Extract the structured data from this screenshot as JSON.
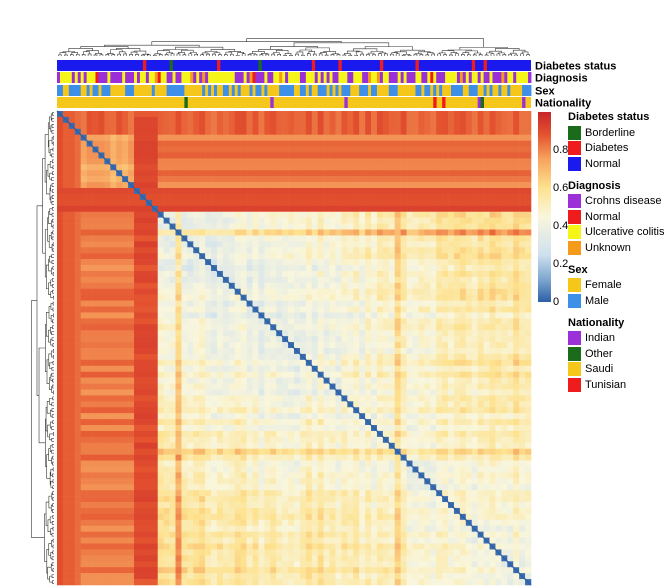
{
  "chart_data": {
    "type": "heatmap",
    "n_samples": 160,
    "matrix_description_blocks": [
      {
        "start": 0,
        "end": 8,
        "within": 0.55
      },
      {
        "start": 8,
        "end": 26,
        "within": 0.62
      },
      {
        "start": 26,
        "end": 33,
        "within": 0.88
      },
      {
        "start": 33,
        "end": 160,
        "within": 0.45
      }
    ],
    "colorbar": {
      "min": 0,
      "max": 1,
      "ticks": [
        "0",
        "0.2",
        "0.4",
        "0.6",
        "0.8"
      ],
      "tick_values": [
        0,
        0.2,
        0.4,
        0.6,
        0.8
      ]
    },
    "annotations": [
      {
        "label": "Diabetes status",
        "categories": [
          {
            "name": "Borderline",
            "color": "#1a6b1a"
          },
          {
            "name": "Diabetes",
            "color": "#ee1c1c"
          },
          {
            "name": "Normal",
            "color": "#1a1aee"
          }
        ]
      },
      {
        "label": "Diagnosis",
        "categories": [
          {
            "name": "Crohns disease",
            "color": "#9b2fd8"
          },
          {
            "name": "Normal",
            "color": "#ee1c1c"
          },
          {
            "name": "Ulcerative colitis",
            "color": "#f5f51a"
          },
          {
            "name": "Unknown",
            "color": "#f59a1a"
          }
        ]
      },
      {
        "label": "Sex",
        "categories": [
          {
            "name": "Female",
            "color": "#f5c71a"
          },
          {
            "name": "Male",
            "color": "#3d8fe8"
          }
        ]
      },
      {
        "label": "Nationality",
        "categories": [
          {
            "name": "Indian",
            "color": "#9b2fd8"
          },
          {
            "name": "Other",
            "color": "#1a6b1a"
          },
          {
            "name": "Saudi",
            "color": "#f5c71a"
          },
          {
            "name": "Tunisian",
            "color": "#ee1c1c"
          }
        ]
      }
    ]
  },
  "legend": {
    "diabetes_title": "Diabetes status",
    "diagnosis_title": "Diagnosis",
    "sex_title": "Sex",
    "nationality_title": "Nationality",
    "diabetes_items": [
      "Borderline",
      "Diabetes",
      "Normal"
    ],
    "diagnosis_items": [
      "Crohns disease",
      "Normal",
      "Ulcerative colitis",
      "Unknown"
    ],
    "sex_items": [
      "Female",
      "Male"
    ],
    "nationality_items": [
      "Indian",
      "Other",
      "Saudi",
      "Tunisian"
    ]
  }
}
